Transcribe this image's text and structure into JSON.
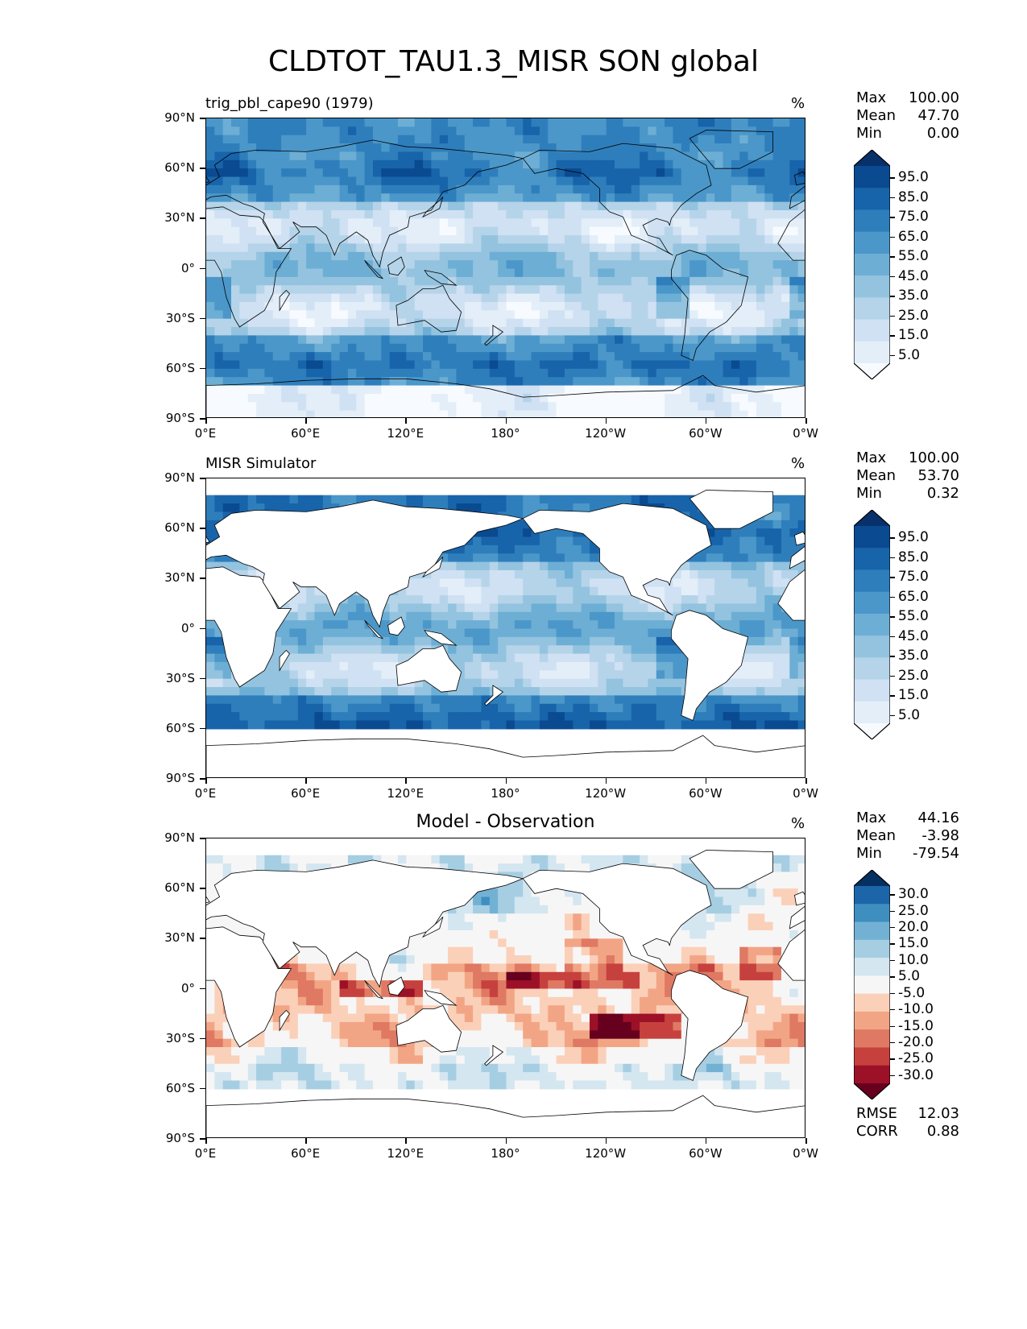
{
  "page": {
    "title": "CLDTOT_TAU1.3_MISR SON global"
  },
  "axes": {
    "x_ticks": [
      "0°E",
      "60°E",
      "120°E",
      "180°",
      "120°W",
      "60°W",
      "0°W"
    ],
    "y_ticks": [
      "90°N",
      "60°N",
      "30°N",
      "0°",
      "30°S",
      "60°S",
      "90°S"
    ]
  },
  "colors": {
    "blues": [
      "#f7fbff",
      "#e3eef9",
      "#cfe1f2",
      "#b5d4e9",
      "#93c3df",
      "#6daed5",
      "#4b97c9",
      "#2f7ebc",
      "#1864aa",
      "#0a4a90",
      "#08306b"
    ],
    "diff": [
      "#67001f",
      "#9c1127",
      "#c6413e",
      "#df7963",
      "#f2a585",
      "#fbd0b9",
      "#f7f6f6",
      "#d4e6f0",
      "#a6cee3",
      "#73b1d4",
      "#3f8ec0",
      "#1c65a8",
      "#053061"
    ]
  },
  "panels": [
    {
      "title": "trig_pbl_cape90 (1979)",
      "units": "%",
      "stats": [
        {
          "label": "Max",
          "value": "100.00"
        },
        {
          "label": "Mean",
          "value": "47.70"
        },
        {
          "label": "Min",
          "value": "0.00"
        }
      ],
      "colorbar_labels": [
        "95.0",
        "85.0",
        "75.0",
        "65.0",
        "55.0",
        "45.0",
        "35.0",
        "25.0",
        "15.0",
        "5.0"
      ]
    },
    {
      "title": "MISR Simulator",
      "units": "%",
      "stats": [
        {
          "label": "Max",
          "value": "100.00"
        },
        {
          "label": "Mean",
          "value": "53.70"
        },
        {
          "label": "Min",
          "value": "0.32"
        }
      ],
      "colorbar_labels": [
        "95.0",
        "85.0",
        "75.0",
        "65.0",
        "55.0",
        "45.0",
        "35.0",
        "25.0",
        "15.0",
        "5.0"
      ]
    },
    {
      "title": "Model - Observation",
      "units": "%",
      "stats": [
        {
          "label": "Max",
          "value": "44.16"
        },
        {
          "label": "Mean",
          "value": "-3.98"
        },
        {
          "label": "Min",
          "value": "-79.54"
        }
      ],
      "colorbar_labels": [
        "30.0",
        "25.0",
        "20.0",
        "15.0",
        "10.0",
        "5.0",
        "-5.0",
        "-10.0",
        "-15.0",
        "-20.0",
        "-25.0",
        "-30.0"
      ],
      "rmse": {
        "label": "RMSE",
        "value": "12.03"
      },
      "corr": {
        "label": "CORR",
        "value": "0.88"
      }
    }
  ],
  "chart_data": [
    {
      "type": "heatmap",
      "title": "trig_pbl_cape90 (1979)",
      "xlabel": "",
      "ylabel": "",
      "units": "%",
      "xlim": [
        0,
        360
      ],
      "ylim": [
        -90,
        90
      ],
      "stats": {
        "max": 100.0,
        "mean": 47.7,
        "min": 0.0
      },
      "levels": [
        0,
        5,
        10,
        15,
        20,
        25,
        30,
        35,
        40,
        45,
        50,
        55,
        60,
        65,
        70,
        75,
        80,
        85,
        90,
        95,
        100
      ]
    },
    {
      "type": "heatmap",
      "title": "MISR Simulator",
      "xlabel": "",
      "ylabel": "",
      "units": "%",
      "xlim": [
        0,
        360
      ],
      "ylim": [
        -90,
        90
      ],
      "stats": {
        "max": 100.0,
        "mean": 53.7,
        "min": 0.32
      },
      "levels": [
        0,
        5,
        10,
        15,
        20,
        25,
        30,
        35,
        40,
        45,
        50,
        55,
        60,
        65,
        70,
        75,
        80,
        85,
        90,
        95,
        100
      ]
    },
    {
      "type": "heatmap",
      "title": "Model - Observation",
      "xlabel": "",
      "ylabel": "",
      "units": "%",
      "xlim": [
        0,
        360
      ],
      "ylim": [
        -90,
        90
      ],
      "stats": {
        "max": 44.16,
        "mean": -3.98,
        "min": -79.54,
        "rmse": 12.03,
        "corr": 0.88
      },
      "levels": [
        -30,
        -25,
        -20,
        -15,
        -10,
        -5,
        5,
        10,
        15,
        20,
        25,
        30
      ]
    }
  ]
}
